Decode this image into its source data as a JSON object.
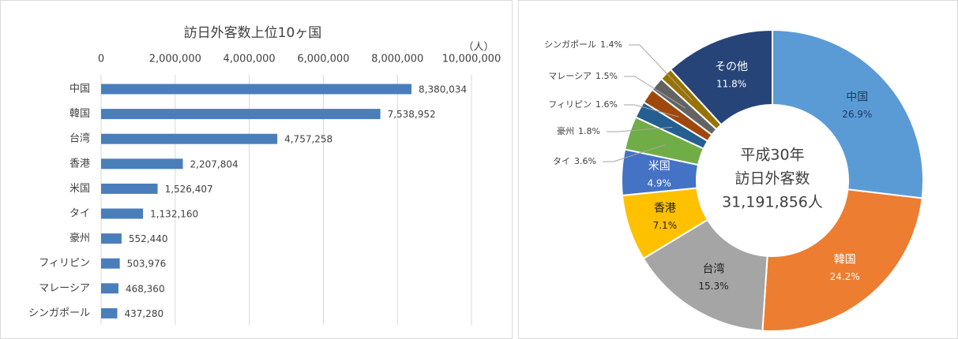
{
  "chart_data": [
    {
      "type": "bar",
      "orientation": "horizontal",
      "title": "訪日外客数上位10ヶ国",
      "unit_label": "（人）",
      "categories": [
        "中国",
        "韓国",
        "台湾",
        "香港",
        "米国",
        "タイ",
        "豪州",
        "フィリピン",
        "マレーシア",
        "シンガポール"
      ],
      "values": [
        8380034,
        7538952,
        4757258,
        2207804,
        1526407,
        1132160,
        552440,
        503976,
        468360,
        437280
      ],
      "value_labels": [
        "8,380,034",
        "7,538,952",
        "4,757,258",
        "2,207,804",
        "1,526,407",
        "1,132,160",
        "552,440",
        "503,976",
        "468,360",
        "437,280"
      ],
      "color": "#4a7ebb",
      "xlim": [
        0,
        10000000
      ],
      "xticks": [
        0,
        {
          "value": 2000000,
          "label": "2,000,000"
        },
        {
          "value": 4000000,
          "label": "4,000,000"
        },
        {
          "value": 6000000,
          "label": "6,000,000"
        },
        {
          "value": 8000000,
          "label": "8,000,000"
        },
        {
          "value": 10000000,
          "label": "10,000,000"
        }
      ],
      "grid": true
    },
    {
      "type": "pie",
      "donut": true,
      "categories": [
        "中国",
        "韓国",
        "台湾",
        "香港",
        "米国",
        "タイ",
        "豪州",
        "フィリピン",
        "マレーシア",
        "シンガポール",
        "その他"
      ],
      "values": [
        26.9,
        24.2,
        15.3,
        7.1,
        4.9,
        3.6,
        1.8,
        1.6,
        1.5,
        1.4,
        11.8
      ],
      "value_labels": [
        "26.9%",
        "24.2%",
        "15.3%",
        "7.1%",
        "4.9%",
        "3.6%",
        "1.8%",
        "1.6%",
        "1.5%",
        "1.4%",
        "11.8%"
      ],
      "colors": [
        "#5b9bd5",
        "#ed7d31",
        "#a5a5a5",
        "#ffc000",
        "#4472c4",
        "#70ad47",
        "#255e91",
        "#9e480e",
        "#636363",
        "#997300",
        "#264478"
      ],
      "annotations": [
        "平成30年",
        "訪日外客数",
        "31,191,856人"
      ]
    }
  ]
}
